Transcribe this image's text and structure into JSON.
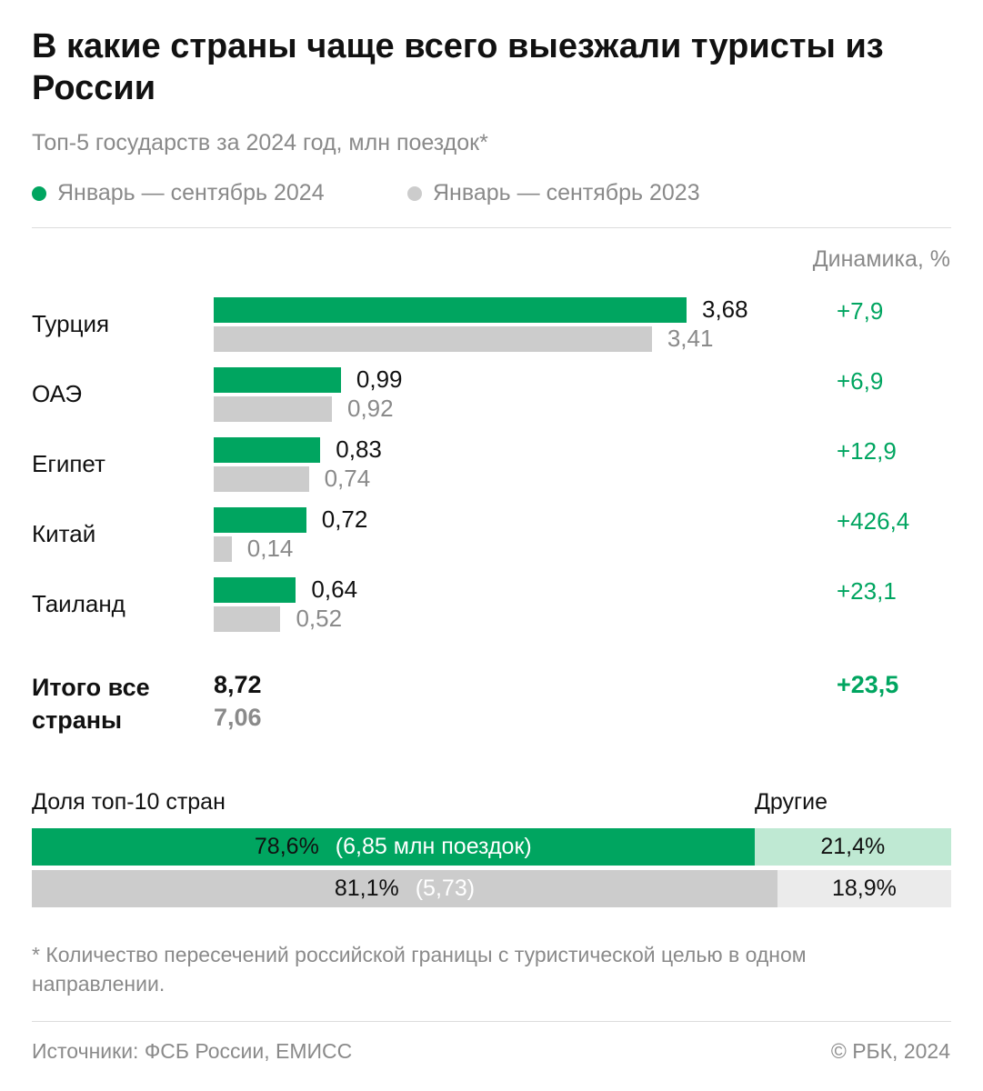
{
  "header": {
    "title": "В какие страны чаще всего выезжали туристы из России",
    "subtitle": "Топ-5 государств за 2024 год, млн поездок*"
  },
  "legend": {
    "current": "Январь — сентябрь 2024",
    "previous": "Январь — сентябрь 2023"
  },
  "dynamics_header": "Динамика, %",
  "colors": {
    "current": "#00a560",
    "previous": "#cccccc",
    "current_light": "#bfe9d3",
    "previous_light": "#ebebeb"
  },
  "chart_data": {
    "type": "bar",
    "orientation": "horizontal",
    "title": "В какие страны чаще всего выезжали туристы из России",
    "subtitle": "Топ-5 государств за 2024 год, млн поездок*",
    "categories": [
      "Турция",
      "ОАЭ",
      "Египет",
      "Китай",
      "Таиланд"
    ],
    "series": [
      {
        "name": "Январь — сентябрь 2024",
        "values": [
          3.68,
          0.99,
          0.83,
          0.72,
          0.64
        ],
        "labels": [
          "3,68",
          "0,99",
          "0,83",
          "0,72",
          "0,64"
        ]
      },
      {
        "name": "Январь — сентябрь 2023",
        "values": [
          3.41,
          0.92,
          0.74,
          0.14,
          0.52
        ],
        "labels": [
          "3,41",
          "0,92",
          "0,74",
          "0,14",
          "0,52"
        ]
      }
    ],
    "dynamics": [
      "+7,9",
      "+6,9",
      "+12,9",
      "+426,4",
      "+23,1"
    ],
    "xlim": [
      0,
      3.68
    ]
  },
  "totals": {
    "label": "Итого все страны",
    "current": "8,72",
    "previous": "7,06",
    "dynamics": "+23,5"
  },
  "share": {
    "label": "Доля топ-10 стран",
    "other_label": "Другие",
    "rows": [
      {
        "top_pct": 78.6,
        "top_text": "78,6%",
        "top_note": "(6,85 млн поездок)",
        "other_text": "21,4%"
      },
      {
        "top_pct": 81.1,
        "top_text": "81,1%",
        "top_note": "(5,73)",
        "other_text": "18,9%"
      }
    ]
  },
  "footnote": "* Количество пересечений российской границы с туристической целью в одном направлении.",
  "source": "Источники: ФСБ России, ЕМИСС",
  "copyright": "© РБК, 2024"
}
